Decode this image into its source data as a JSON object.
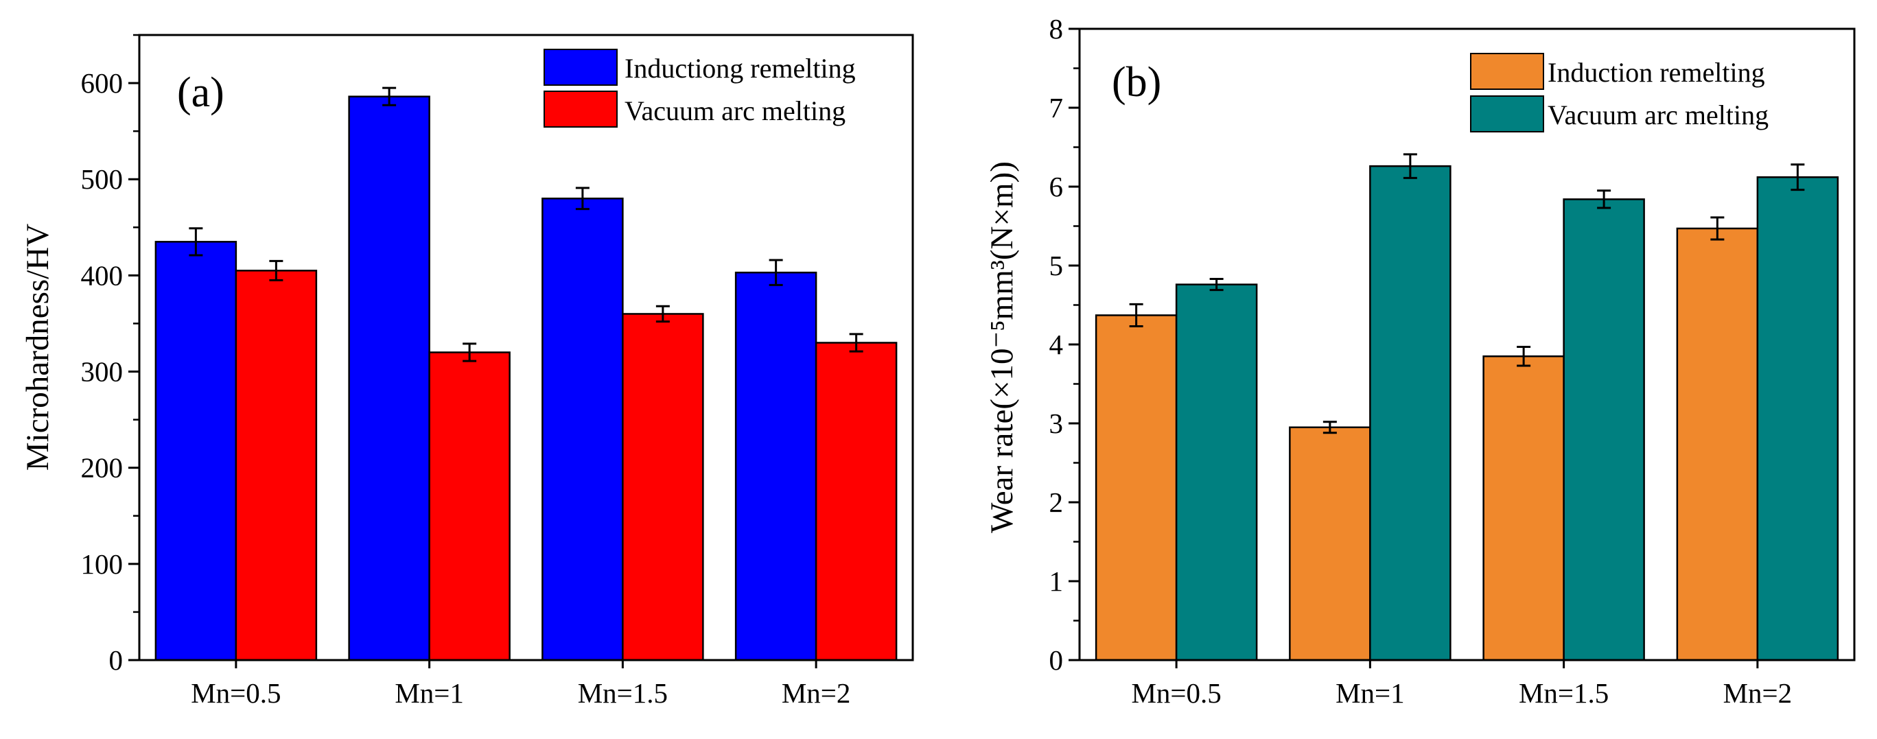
{
  "colors": {
    "induction_a": "#0000FF",
    "vacuum_a": "#FF0000",
    "induction_b": "#F0882C",
    "vacuum_b": "#008080"
  },
  "chart_data": [
    {
      "type": "bar",
      "panel_label": "(a)",
      "ylabel": "Microhardness/HV",
      "xlabel": "",
      "ylim": [
        0,
        650
      ],
      "yticks": [
        "0",
        "100",
        "200",
        "300",
        "400",
        "500",
        "600"
      ],
      "categories": [
        "Mn=0.5",
        "Mn=1",
        "Mn=1.5",
        "Mn=2"
      ],
      "legend_position": "top-right",
      "series": [
        {
          "name": "Inductiong remelting",
          "values": [
            435,
            586,
            480,
            403
          ],
          "errors": [
            14,
            9,
            11,
            13
          ]
        },
        {
          "name": "Vacuum arc melting",
          "values": [
            405,
            320,
            360,
            330
          ],
          "errors": [
            10,
            9,
            8,
            9
          ]
        }
      ]
    },
    {
      "type": "bar",
      "panel_label": "(b)",
      "ylabel": "Wear rate(×10⁻⁵mm³(N×m))",
      "xlabel": "",
      "ylim": [
        0,
        8
      ],
      "yticks": [
        "0",
        "1",
        "2",
        "3",
        "4",
        "5",
        "6",
        "7",
        "8"
      ],
      "categories": [
        "Mn=0.5",
        "Mn=1",
        "Mn=1.5",
        "Mn=2"
      ],
      "legend_position": "top-right",
      "series": [
        {
          "name": "Induction remelting",
          "values": [
            4.37,
            2.95,
            3.85,
            5.47
          ],
          "errors": [
            0.14,
            0.07,
            0.12,
            0.14
          ]
        },
        {
          "name": "Vacuum arc melting",
          "values": [
            4.76,
            6.26,
            5.84,
            6.12
          ],
          "errors": [
            0.07,
            0.15,
            0.11,
            0.16
          ]
        }
      ]
    }
  ]
}
